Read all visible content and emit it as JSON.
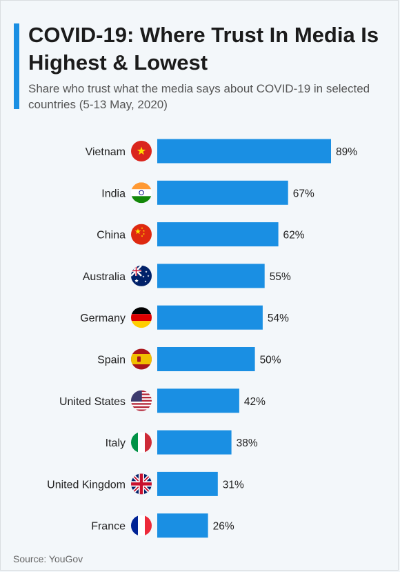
{
  "title": "COVID-19: Where Trust In Media Is Highest & Lowest",
  "subtitle": "Share who trust what the media says about COVID-19 in selected countries (5-13 May, 2020)",
  "source": "Source: YouGov",
  "colors": {
    "bar": "#1a8fe3",
    "accent": "#1a8fe3",
    "background": "#f3f7fa"
  },
  "chart_data": {
    "type": "bar",
    "orientation": "horizontal",
    "categories": [
      "Vietnam",
      "India",
      "China",
      "Australia",
      "Germany",
      "Spain",
      "United States",
      "Italy",
      "United Kingdom",
      "France"
    ],
    "values": [
      89,
      67,
      62,
      55,
      54,
      50,
      42,
      38,
      31,
      26
    ],
    "value_labels": [
      "89%",
      "67%",
      "62%",
      "55%",
      "54%",
      "50%",
      "42%",
      "38%",
      "31%",
      "26%"
    ],
    "flag_icons": [
      "vietnam-flag-icon",
      "india-flag-icon",
      "china-flag-icon",
      "australia-flag-icon",
      "germany-flag-icon",
      "spain-flag-icon",
      "united-states-flag-icon",
      "italy-flag-icon",
      "united-kingdom-flag-icon",
      "france-flag-icon"
    ],
    "unit": "%",
    "xlim": [
      0,
      100
    ],
    "grid": false,
    "legend": "none"
  }
}
